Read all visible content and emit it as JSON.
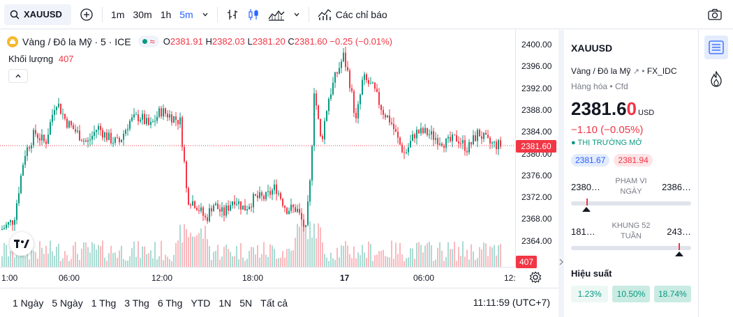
{
  "toolbar": {
    "symbol": "XAUUSD",
    "timeframes": [
      "1m",
      "30m",
      "1h",
      "5m"
    ],
    "active_timeframe": "5m",
    "indicators_label": "Các chỉ báo"
  },
  "legend": {
    "name": "Vàng / Đô la Mỹ · 5 · ICE",
    "open_label": "O",
    "open": "2381.91",
    "high_label": "H",
    "high": "2382.03",
    "low_label": "L",
    "low": "2381.20",
    "close_label": "C",
    "close": "2381.60",
    "change": "−0.25 (−0.01%)",
    "volume_label": "Khối lượng",
    "volume": "407"
  },
  "price_scale": {
    "ticks": [
      "2400.00",
      "2396.00",
      "2392.00",
      "2388.00",
      "2384.00",
      "2380.00",
      "2376.00",
      "2372.00",
      "2368.00",
      "2364.00"
    ],
    "current": "2381.60",
    "volume_tag": "407"
  },
  "time_axis": [
    "1:00",
    "06:00",
    "12:00",
    "18:00",
    "17",
    "06:00",
    "12:"
  ],
  "bottom": {
    "ranges": [
      "1 Ngày",
      "5 Ngày",
      "1 Thg",
      "3 Thg",
      "6 Thg",
      "YTD",
      "1N",
      "5N",
      "Tất cả"
    ],
    "clock": "11:11:59 (UTC+7)"
  },
  "panel": {
    "symbol": "XAUUSD",
    "name": "Vàng / Đô la Mỹ",
    "exchange": "FX_IDC",
    "category": "Hàng hóa",
    "type": "Cfd",
    "price_main": "2381.6",
    "price_last": "0",
    "currency": "USD",
    "change": "−1.10 (−0.05%)",
    "status": "THỊ TRƯỜNG MỞ",
    "bid": "2381.67",
    "ask": "2381.94",
    "day_low": "2380…",
    "day_label_1": "PHẠM VI",
    "day_label_2": "NGÀY",
    "day_high": "2386…",
    "w52_low": "181…",
    "w52_label_1": "KHUNG 52",
    "w52_label_2": "TUẦN",
    "w52_high": "243…",
    "perf_title": "Hiệu suất",
    "perf": [
      "1.23%",
      "10.50%",
      "18.74%"
    ]
  },
  "colors": {
    "up": "#089981",
    "down": "#f23645",
    "accent": "#2962ff"
  }
}
